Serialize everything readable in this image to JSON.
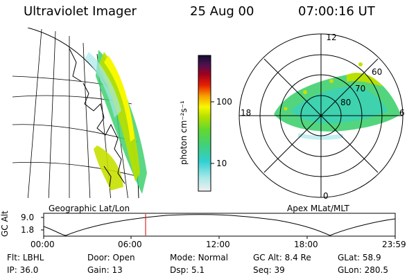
{
  "header": {
    "instrument": "Ultraviolet Imager",
    "date": "25 Aug 00",
    "time": "07:00:16 UT"
  },
  "left_panel": {
    "caption": "Geographic Lat/Lon"
  },
  "colorbar": {
    "unit_label": "photon cm⁻²s⁻¹",
    "ticks": [
      {
        "label": "100",
        "value": 100
      },
      {
        "label": "10",
        "value": 10
      }
    ],
    "scale": "log"
  },
  "polar_panel": {
    "caption": "Apex MLat/MLT",
    "mlt_labels": {
      "top": "12",
      "left": "18",
      "right": "6",
      "bottom": "0"
    },
    "lat_labels": [
      "60",
      "70",
      "80"
    ]
  },
  "altitude_plot": {
    "ylabel": "GC Alt",
    "yticks": [
      "9.0",
      "1.8"
    ],
    "xticks": [
      "00:00",
      "06:00",
      "12:00",
      "18:00",
      "23:59"
    ],
    "current_time_marker": "07:00"
  },
  "info": {
    "row1": [
      {
        "key": "Flt:",
        "value": "LBHL"
      },
      {
        "key": "Door:",
        "value": "Open"
      },
      {
        "key": "Mode:",
        "value": "Normal"
      },
      {
        "key": "GC Alt:",
        "value": "8.4 Re"
      },
      {
        "key": "GLat:",
        "value": "58.9"
      }
    ],
    "row2": [
      {
        "key": "IP:",
        "value": "36.0"
      },
      {
        "key": "Gain:",
        "value": "13"
      },
      {
        "key": "Dsp:",
        "value": "5.1"
      },
      {
        "key": "Seq:",
        "value": "39"
      },
      {
        "key": "GLon:",
        "value": "280.5"
      }
    ]
  },
  "colors": {
    "frame": "#000000",
    "marker": "#cc0000"
  }
}
